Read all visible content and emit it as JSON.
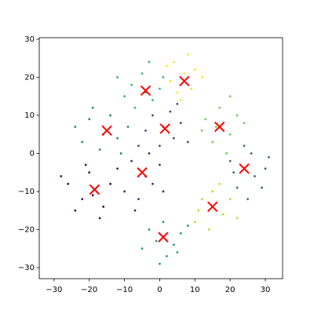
{
  "chart_data": {
    "type": "scatter",
    "xlim": [
      -34.2,
      34.9
    ],
    "ylim": [
      -32.9,
      30.4
    ],
    "xticks": [
      {
        "value": -30,
        "label": "−30"
      },
      {
        "value": -20,
        "label": "−20"
      },
      {
        "value": -10,
        "label": "−10"
      },
      0,
      10,
      20,
      30
    ],
    "yticks": [
      {
        "value": -30,
        "label": "−30"
      },
      {
        "value": -20,
        "label": "−20"
      },
      {
        "value": -10,
        "label": "−10"
      },
      0,
      10,
      20,
      30
    ],
    "series": [
      {
        "color": "#440154",
        "marker": "dot",
        "x": [
          -26,
          -22,
          -20,
          -16,
          -24,
          -14,
          -19,
          -28,
          -17,
          -21
        ],
        "y": [
          -8,
          -12,
          -5,
          -14,
          -15,
          -8,
          -11,
          -6,
          -17,
          -3
        ]
      },
      {
        "color": "#482878",
        "marker": "dot",
        "x": [
          -8,
          -2,
          -10,
          0,
          -6,
          -3,
          -12,
          -4,
          -7,
          1
        ],
        "y": [
          -2,
          -8,
          -10,
          -3,
          -12,
          0,
          -4,
          -6,
          -15,
          -10
        ]
      },
      {
        "color": "#3e4989",
        "marker": "dot",
        "x": [
          -2,
          4,
          0,
          6,
          -4,
          3,
          8,
          1,
          -6,
          5
        ],
        "y": [
          10,
          4,
          2,
          8,
          6,
          11,
          3,
          7,
          2,
          13
        ]
      },
      {
        "color": "#31688e",
        "marker": "dot",
        "x": [
          20,
          27,
          24,
          30,
          22,
          26,
          29,
          21,
          25,
          31
        ],
        "y": [
          -2,
          -6,
          2,
          -4,
          -9,
          0,
          -9,
          -5,
          -12,
          -1
        ]
      },
      {
        "color": "#26828e",
        "marker": "dot",
        "x": [
          -20,
          -12,
          -17,
          -14,
          -22,
          -9,
          -16,
          -19,
          -11,
          -24
        ],
        "y": [
          9,
          4,
          1,
          10,
          3,
          7,
          5,
          12,
          0,
          7
        ]
      },
      {
        "color": "#1f9e89",
        "marker": "dot",
        "x": [
          -3,
          4,
          1,
          6,
          -5,
          2,
          -1,
          8,
          0,
          5
        ],
        "y": [
          -20,
          -24,
          -18,
          -21,
          -25,
          -27,
          -23,
          -19,
          -29,
          -26
        ]
      },
      {
        "color": "#35b779",
        "marker": "dot",
        "x": [
          -8,
          -2,
          -5,
          0,
          -10,
          -3,
          -7,
          1,
          -4,
          -12
        ],
        "y": [
          18,
          14,
          21,
          17,
          15,
          24,
          12,
          20,
          16,
          20
        ]
      },
      {
        "color": "#6ece58",
        "marker": "dot",
        "x": [
          13,
          20,
          17,
          22,
          15,
          19,
          12,
          24,
          16,
          20
        ],
        "y": [
          9,
          5,
          12,
          10,
          3,
          0,
          6,
          8,
          7,
          15
        ]
      },
      {
        "color": "#b5de2b",
        "marker": "dot",
        "x": [
          12,
          18,
          15,
          10,
          20,
          14,
          17,
          11,
          22,
          15
        ],
        "y": [
          -12,
          -16,
          -10,
          -18,
          -12,
          -20,
          -8,
          -15,
          -17,
          -14
        ]
      },
      {
        "color": "#fde725",
        "marker": "dot",
        "x": [
          4,
          9,
          6,
          10,
          3,
          8,
          5,
          12,
          7,
          2
        ],
        "y": [
          24,
          17,
          14,
          22,
          19,
          26,
          16,
          20,
          21,
          23
        ]
      },
      {
        "color": "#ff0000",
        "marker": "x",
        "x": [
          -18.5,
          -5,
          1.5,
          24,
          -15,
          1,
          -4,
          17,
          15,
          7
        ],
        "y": [
          -9.5,
          -5,
          6.5,
          -4,
          6,
          -22,
          16.5,
          7,
          -14,
          19
        ]
      }
    ]
  }
}
